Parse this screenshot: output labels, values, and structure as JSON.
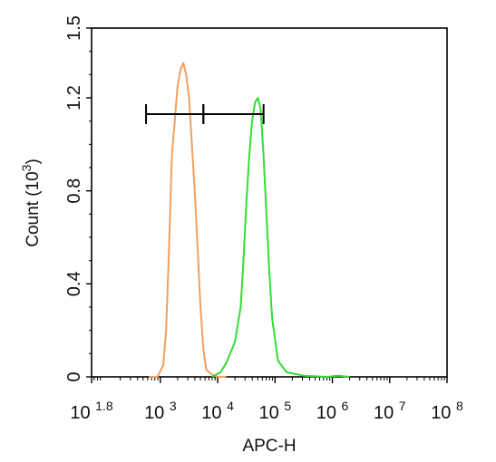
{
  "chart_data": {
    "type": "line",
    "title": "",
    "xlabel": "APC-H",
    "ylabel": "Count (10³)",
    "ylabel_parts": {
      "text": "Count  (10",
      "sup": "3",
      "close": ")"
    },
    "x_scale": "log10",
    "xlim": [
      1.8,
      8
    ],
    "ylim": [
      0,
      1.5
    ],
    "x_ticks": [
      {
        "value": 1.8,
        "base": "10",
        "exp": "1.8"
      },
      {
        "value": 3,
        "base": "10",
        "exp": "3"
      },
      {
        "value": 4,
        "base": "10",
        "exp": "4"
      },
      {
        "value": 5,
        "base": "10",
        "exp": "5"
      },
      {
        "value": 6,
        "base": "10",
        "exp": "6"
      },
      {
        "value": 7,
        "base": "10",
        "exp": "7"
      },
      {
        "value": 8,
        "base": "10",
        "exp": "8"
      }
    ],
    "y_ticks": [
      {
        "value": 0,
        "label": "0"
      },
      {
        "value": 0.4,
        "label": "0.4"
      },
      {
        "value": 0.8,
        "label": "0.8"
      },
      {
        "value": 1.2,
        "label": "1.2"
      },
      {
        "value": 1.5,
        "label": "1.5"
      }
    ],
    "grid": false,
    "series": [
      {
        "color": "#f0a060",
        "log10_x": [
          2.8,
          2.95,
          3.05,
          3.1,
          3.15,
          3.2,
          3.25,
          3.3,
          3.35,
          3.4,
          3.45,
          3.5,
          3.55,
          3.6,
          3.65,
          3.7,
          3.75,
          3.8,
          3.9,
          4.0,
          4.15
        ],
        "y": [
          0,
          0,
          0.05,
          0.2,
          0.55,
          0.95,
          1.1,
          1.25,
          1.32,
          1.35,
          1.3,
          1.2,
          1.0,
          0.8,
          0.55,
          0.3,
          0.12,
          0.03,
          0.01,
          0,
          0
        ]
      },
      {
        "color": "#33dd33",
        "log10_x": [
          3.9,
          4.05,
          4.15,
          4.3,
          4.4,
          4.45,
          4.5,
          4.55,
          4.6,
          4.65,
          4.7,
          4.75,
          4.8,
          4.85,
          4.9,
          4.95,
          5.05,
          5.2,
          5.5,
          5.9,
          6.1,
          6.3
        ],
        "y": [
          0,
          0.02,
          0.06,
          0.15,
          0.3,
          0.5,
          0.75,
          0.95,
          1.1,
          1.18,
          1.2,
          1.15,
          0.95,
          0.7,
          0.45,
          0.25,
          0.07,
          0.02,
          0.005,
          0,
          0.005,
          0
        ]
      }
    ],
    "gates": [
      {
        "log10_x_start": 2.75,
        "log10_x_end": 3.75,
        "y": 1.13
      },
      {
        "log10_x_start": 3.75,
        "log10_x_end": 4.8,
        "y": 1.13
      }
    ]
  }
}
